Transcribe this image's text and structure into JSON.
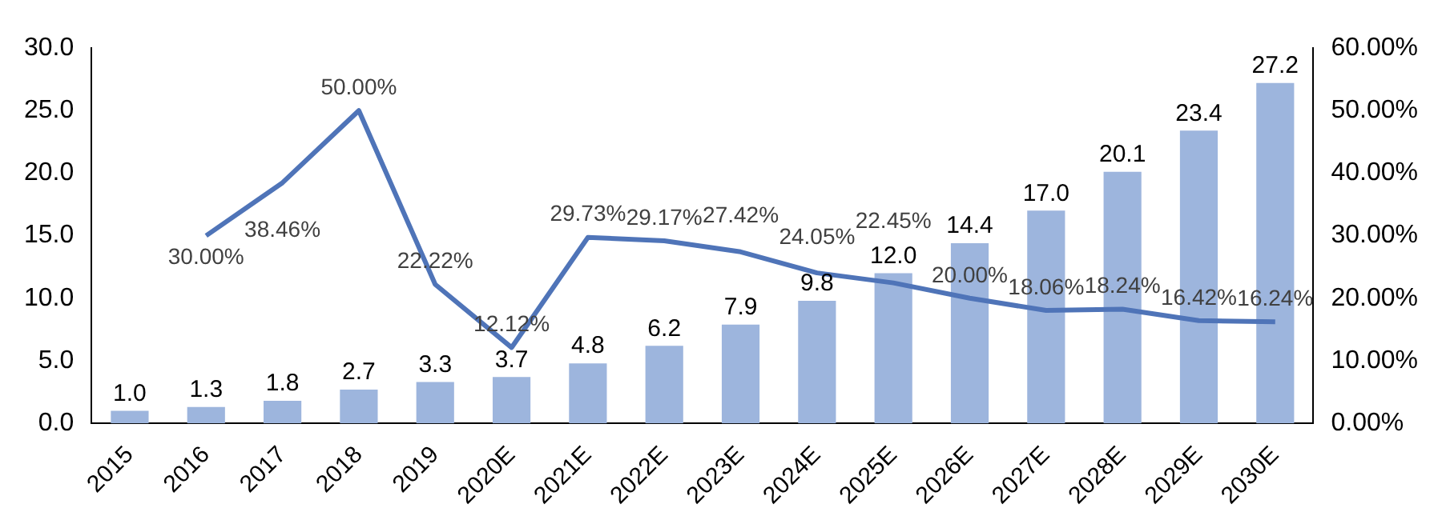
{
  "chart_data": {
    "type": "bar",
    "categories": [
      "2015",
      "2016",
      "2017",
      "2018",
      "2019",
      "2020E",
      "2021E",
      "2022E",
      "2023E",
      "2024E",
      "2025E",
      "2026E",
      "2027E",
      "2028E",
      "2029E",
      "2030E"
    ],
    "series": [
      {
        "color": "#9db5dd",
        "values": [
          1.0,
          1.3,
          1.8,
          2.7,
          3.3,
          3.7,
          4.8,
          6.2,
          7.9,
          9.8,
          12.0,
          14.4,
          17.0,
          20.1,
          23.4,
          27.2
        ],
        "value_labels": [
          "1.0",
          "1.3",
          "1.8",
          "2.7",
          "3.3",
          "3.7",
          "4.8",
          "6.2",
          "7.9",
          "9.8",
          "12.0",
          "14.4",
          "17.0",
          "20.1",
          "23.4",
          "27.2"
        ]
      },
      {
        "type": "line",
        "axis": "y2",
        "color": "#4f74b8",
        "values": [
          null,
          30.0,
          38.46,
          50.0,
          22.22,
          12.12,
          29.73,
          29.17,
          27.42,
          24.05,
          22.45,
          20.0,
          18.06,
          18.24,
          16.42,
          16.24
        ],
        "value_labels": [
          null,
          "30.00%",
          "38.46%",
          "50.00%",
          "22.22%",
          "12.12%",
          "29.73%",
          "29.17%",
          "27.42%",
          "24.05%",
          "22.45%",
          "20.00%",
          "18.06%",
          "18.24%",
          "16.42%",
          "16.24%"
        ]
      }
    ],
    "ylim": [
      0,
      30
    ],
    "yticks": [
      {
        "value": 0,
        "label": "0.0"
      },
      {
        "value": 5,
        "label": "5.0"
      },
      {
        "value": 10,
        "label": "10.0"
      },
      {
        "value": 15,
        "label": "15.0"
      },
      {
        "value": 20,
        "label": "20.0"
      },
      {
        "value": 25,
        "label": "25.0"
      },
      {
        "value": 30,
        "label": "30.0"
      }
    ],
    "y2lim": [
      0,
      60
    ],
    "y2ticks": [
      {
        "value": 0,
        "label": "0.00%"
      },
      {
        "value": 10,
        "label": "10.00%"
      },
      {
        "value": 20,
        "label": "20.00%"
      },
      {
        "value": 30,
        "label": "30.00%"
      },
      {
        "value": 40,
        "label": "40.00%"
      },
      {
        "value": 50,
        "label": "50.00%"
      },
      {
        "value": 60,
        "label": "60.00%"
      }
    ],
    "grid": false,
    "legend": false,
    "marker": "none",
    "line_style": "solid"
  }
}
